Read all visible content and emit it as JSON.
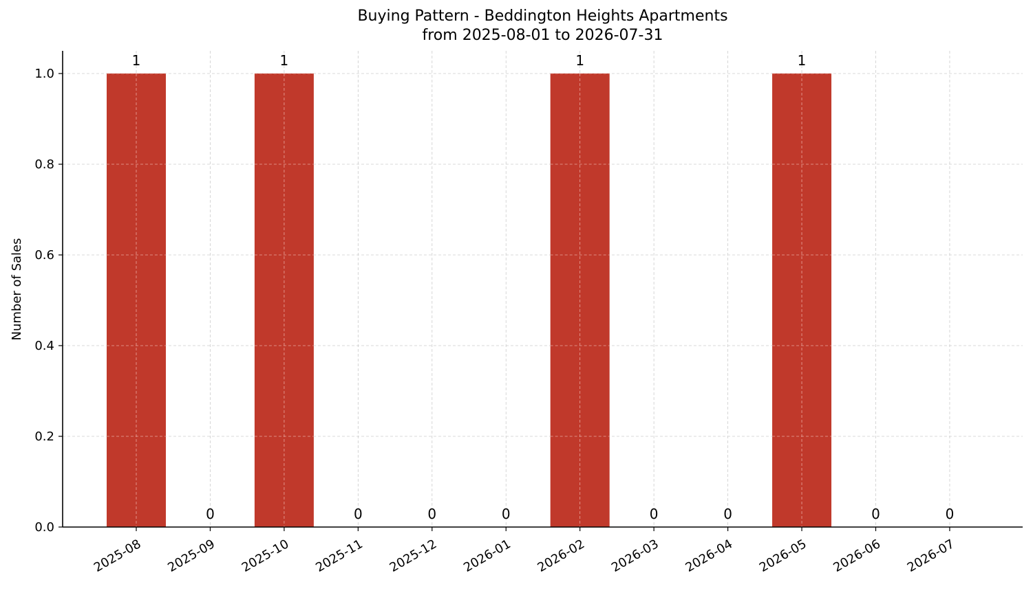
{
  "chart_data": {
    "type": "bar",
    "title": "Buying Pattern - Beddington Heights Apartments",
    "subtitle": "from 2025-08-01 to 2026-07-31",
    "xlabel": "",
    "ylabel": "Number of Sales",
    "categories": [
      "2025-08",
      "2025-09",
      "2025-10",
      "2025-11",
      "2025-12",
      "2026-01",
      "2026-02",
      "2026-03",
      "2026-04",
      "2026-05",
      "2026-06",
      "2026-07"
    ],
    "values": [
      1,
      0,
      1,
      0,
      0,
      0,
      1,
      0,
      0,
      1,
      0,
      0
    ],
    "data_labels": [
      "1",
      "0",
      "1",
      "0",
      "0",
      "0",
      "1",
      "0",
      "0",
      "1",
      "0",
      "0"
    ],
    "ylim": [
      0,
      1.05
    ],
    "yticks": [
      0.0,
      0.2,
      0.4,
      0.6,
      0.8,
      1.0
    ],
    "ytick_labels": [
      "0.0",
      "0.2",
      "0.4",
      "0.6",
      "0.8",
      "1.0"
    ],
    "grid": true,
    "legend": "none",
    "bar_color": "#c0392b",
    "grid_color": "#cccccc",
    "axis_color": "#000000"
  }
}
